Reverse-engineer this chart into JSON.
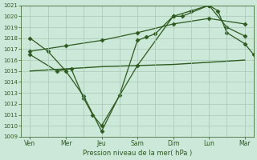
{
  "xlabel": "Pression niveau de la mer( hPa )",
  "ylim": [
    1009,
    1021
  ],
  "xlim": [
    0,
    13
  ],
  "yticks": [
    1009,
    1010,
    1011,
    1012,
    1013,
    1014,
    1015,
    1016,
    1017,
    1018,
    1019,
    1020,
    1021
  ],
  "x_tick_positions": [
    0.5,
    2.5,
    4.5,
    6.5,
    8.5,
    10.5,
    12.5
  ],
  "x_labels": [
    "Ven",
    "Mer",
    "Jeu",
    "Sam",
    "Dim",
    "Lun",
    "Mar"
  ],
  "x_vlines": [
    1.5,
    3.5,
    5.5,
    7.5,
    9.5,
    11.5
  ],
  "line_color": "#2d5a1e",
  "bg_color": "#cce8d8",
  "grid_color": "#a8c8b4",
  "series": [
    {
      "name": "volatile_low",
      "x": [
        0.5,
        2.0,
        2.8,
        3.5,
        4.0,
        4.5,
        6.5,
        8.5,
        9.0,
        10.5,
        11.0,
        11.5,
        12.5,
        13.0
      ],
      "y": [
        1016.5,
        1015.0,
        1015.2,
        1012.5,
        1011.0,
        1010.0,
        1015.5,
        1020.0,
        1020.0,
        1021.0,
        1020.5,
        1018.5,
        1017.5,
        1016.5
      ],
      "marker": "D",
      "markersize": 2.5,
      "linewidth": 0.9
    },
    {
      "name": "main_rising",
      "x": [
        0.5,
        1.5,
        2.5,
        3.5,
        4.5,
        5.5,
        6.5,
        7.0,
        7.5,
        8.5,
        9.5,
        10.5,
        11.5,
        12.5
      ],
      "y": [
        1018.0,
        1016.8,
        1015.0,
        1012.7,
        1009.5,
        1012.8,
        1017.8,
        1018.1,
        1018.4,
        1020.0,
        1020.5,
        1021.0,
        1019.0,
        1018.2
      ],
      "marker": "D",
      "markersize": 2.5,
      "linewidth": 0.9
    },
    {
      "name": "gradual_rise",
      "x": [
        0.5,
        2.5,
        4.5,
        6.5,
        8.5,
        10.5,
        12.5
      ],
      "y": [
        1016.8,
        1017.3,
        1017.8,
        1018.5,
        1019.3,
        1019.8,
        1019.3
      ],
      "marker": "D",
      "markersize": 2.5,
      "linewidth": 0.9
    },
    {
      "name": "flat_line",
      "x": [
        0.5,
        2.5,
        4.5,
        6.5,
        8.5,
        10.5,
        12.5
      ],
      "y": [
        1015.0,
        1015.2,
        1015.4,
        1015.5,
        1015.6,
        1015.8,
        1016.0
      ],
      "marker": null,
      "markersize": 0,
      "linewidth": 1.0
    }
  ]
}
